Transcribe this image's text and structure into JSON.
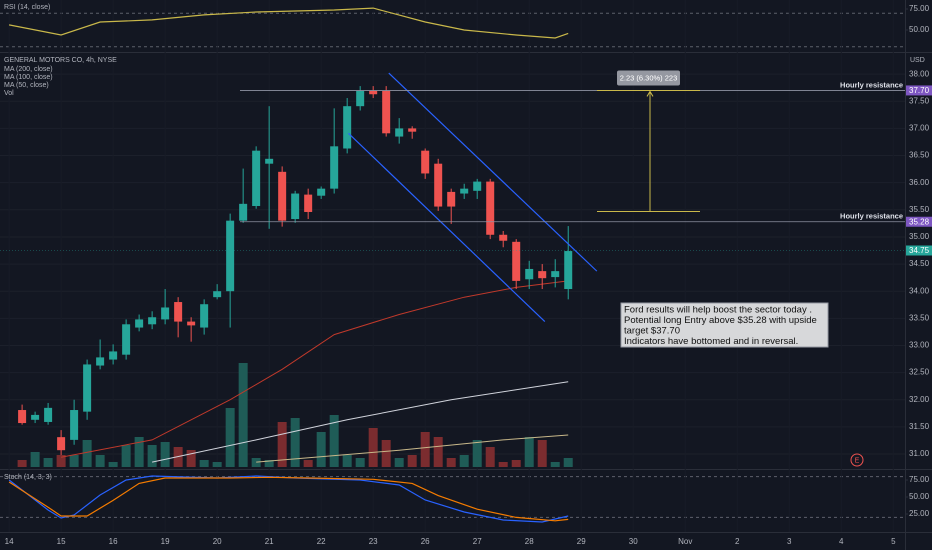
{
  "chart_data": [
    {
      "type": "line",
      "title": "RSI (14, close)",
      "series": [
        {
          "name": null,
          "color": "#c9b84a",
          "x": [
            0,
            4,
            7,
            11,
            15,
            19,
            25,
            28,
            32,
            35,
            39,
            42,
            43
          ],
          "values": [
            56,
            44,
            59.5,
            62,
            68,
            71.4,
            73.8,
            76,
            59.5,
            50,
            44,
            40.5,
            46
          ]
        }
      ],
      "xlim": [
        -0.7,
        68.9
      ],
      "ylim": [
        23.8,
        85.7
      ],
      "yticks": [
        {
          "value": 75,
          "label": "75.00"
        },
        {
          "value": 50,
          "label": "50.00"
        }
      ],
      "bands": [
        70,
        30
      ]
    },
    {
      "type": "candlestick",
      "title": "GENERAL MOTORS CO, 4h, NYSE",
      "currency": "USD",
      "x": [
        1,
        2,
        3,
        4,
        5,
        6,
        7,
        8,
        9,
        10,
        11,
        12,
        13,
        14,
        15,
        16,
        17,
        18,
        19,
        20,
        21,
        22,
        23,
        24,
        25,
        26,
        27,
        28,
        29,
        30,
        31,
        32,
        33,
        34,
        35,
        36,
        37,
        38,
        39,
        40,
        41,
        42,
        43
      ],
      "open": [
        31.81,
        31.63,
        31.59,
        31.31,
        31.26,
        31.78,
        32.63,
        32.74,
        32.83,
        33.33,
        33.39,
        33.48,
        33.8,
        33.44,
        33.33,
        33.89,
        34.0,
        35.3,
        35.57,
        36.35,
        36.2,
        35.33,
        35.78,
        35.76,
        35.89,
        36.63,
        37.41,
        37.69,
        37.69,
        36.85,
        37.0,
        36.59,
        36.35,
        35.83,
        35.8,
        35.85,
        36.02,
        35.04,
        34.91,
        34.22,
        34.37,
        34.26,
        34.04
      ],
      "high": [
        31.91,
        31.78,
        31.94,
        31.44,
        32.0,
        32.74,
        33.11,
        33.02,
        33.48,
        33.57,
        33.63,
        34.04,
        33.89,
        33.52,
        33.85,
        34.13,
        35.43,
        36.26,
        36.67,
        37.41,
        36.3,
        35.85,
        35.89,
        35.93,
        37.37,
        37.56,
        37.78,
        37.78,
        37.78,
        37.19,
        37.04,
        36.63,
        36.44,
        35.89,
        35.98,
        36.07,
        36.07,
        35.11,
        34.96,
        34.56,
        34.5,
        34.59,
        35.2
      ],
      "low": [
        31.54,
        31.57,
        31.54,
        30.98,
        31.17,
        31.63,
        32.56,
        32.65,
        32.74,
        33.26,
        33.3,
        33.39,
        33.15,
        33.07,
        33.2,
        33.85,
        33.33,
        35.26,
        35.52,
        35.15,
        35.19,
        35.26,
        35.33,
        35.7,
        35.8,
        36.54,
        37.33,
        37.56,
        36.85,
        36.72,
        36.81,
        36.07,
        35.48,
        35.24,
        35.7,
        35.7,
        34.96,
        34.81,
        34.04,
        34.04,
        34.04,
        34.07,
        33.85
      ],
      "close": [
        31.57,
        31.72,
        31.85,
        31.07,
        31.81,
        32.65,
        32.78,
        32.89,
        33.39,
        33.48,
        33.52,
        33.7,
        33.44,
        33.37,
        33.76,
        34.0,
        35.3,
        35.61,
        36.59,
        36.44,
        35.3,
        35.8,
        35.46,
        35.89,
        36.67,
        37.41,
        37.69,
        37.63,
        36.91,
        37.0,
        36.94,
        36.17,
        35.56,
        35.56,
        35.89,
        36.02,
        35.04,
        34.93,
        34.19,
        34.41,
        34.24,
        34.37,
        34.74
      ],
      "up_color": "#26a69a",
      "down_color": "#ef5350",
      "volume": {
        "name": "Vol",
        "values": [
          7,
          15,
          9,
          12,
          12,
          27,
          12,
          5,
          22,
          30,
          22,
          25,
          20,
          17,
          7,
          5,
          59,
          104,
          9,
          7,
          45,
          49,
          7,
          35,
          52,
          12,
          9,
          39,
          27,
          9,
          12,
          35,
          30,
          9,
          12,
          27,
          20,
          5,
          7,
          30,
          27,
          5,
          9
        ],
        "up_color": "#1f5c57",
        "down_color": "#7b2c2f"
      },
      "series": [
        {
          "name": "MA (200, close)",
          "color": "#c8b88a",
          "x": [
            19,
            30,
            38,
            43
          ],
          "values": [
            30.85,
            31.07,
            31.26,
            31.35
          ]
        },
        {
          "name": "MA (100, close)",
          "color": "#d1d4dc",
          "x": [
            11,
            19,
            26,
            34,
            43
          ],
          "values": [
            30.85,
            31.26,
            31.63,
            32.0,
            32.33
          ]
        },
        {
          "name": "MA (50, close)",
          "color": "#c0392b",
          "x": [
            4,
            11,
            17,
            21,
            25,
            30,
            35,
            39,
            43
          ],
          "values": [
            30.94,
            31.26,
            32.0,
            32.56,
            33.2,
            33.57,
            33.89,
            34.07,
            34.19
          ]
        }
      ],
      "xlim": [
        -0.7,
        68.9
      ],
      "ylim": [
        30.76,
        38.39
      ],
      "yticks": [
        {
          "value": 38,
          "label": "38.00"
        },
        {
          "value": 37.5,
          "label": "37.50"
        },
        {
          "value": 37,
          "label": "37.00"
        },
        {
          "value": 36.5,
          "label": "36.50"
        },
        {
          "value": 36,
          "label": "36.00"
        },
        {
          "value": 35.5,
          "label": "35.50"
        },
        {
          "value": 35,
          "label": "35.00"
        },
        {
          "value": 34.5,
          "label": "34.50"
        },
        {
          "value": 34,
          "label": "34.00"
        },
        {
          "value": 33.5,
          "label": "33.50"
        },
        {
          "value": 33,
          "label": "33.00"
        },
        {
          "value": 32.5,
          "label": "32.50"
        },
        {
          "value": 32,
          "label": "32.00"
        },
        {
          "value": 31.5,
          "label": "31.50"
        },
        {
          "value": 31,
          "label": "31.00"
        }
      ],
      "grid": true,
      "levels": [
        {
          "value": 37.7,
          "label": "37.70",
          "color": "#7e57c2",
          "text": "Hourly resistance",
          "line": true
        },
        {
          "value": 35.28,
          "label": "35.28",
          "color": "#7e57c2",
          "text": "Hourly resistance",
          "line": true
        },
        {
          "value": 34.75,
          "label": "34.75",
          "color": "#26a69a",
          "line": false
        }
      ],
      "channels": [
        {
          "color": "#2962ff",
          "x": [
            29.2,
            45.2
          ],
          "values": [
            38.02,
            34.37
          ]
        },
        {
          "color": "#2962ff",
          "x": [
            26.1,
            41.2
          ],
          "values": [
            36.91,
            33.44
          ]
        }
      ],
      "measure": {
        "label": "2.23 (6.30%) 223",
        "from": 35.47,
        "to": 37.7,
        "color": "#c9b84a"
      },
      "note": [
        "Ford results will help boost the sector today .",
        "Potential long Entry above $35.28 with upside",
        "target $37.70",
        "Indicators have bottomed and in reversal."
      ]
    },
    {
      "type": "line",
      "title": "Stoch (14, 3, 3)",
      "series": [
        {
          "name": null,
          "color": "#2962ff",
          "x": [
            0,
            3,
            4,
            5,
            7,
            9,
            11,
            16,
            19,
            22,
            27,
            30,
            32,
            35,
            38,
            41,
            43
          ],
          "values": [
            75,
            30.9,
            19.1,
            23.5,
            52.9,
            75,
            80.9,
            77.9,
            80.9,
            77.9,
            75,
            67.6,
            45.6,
            27.9,
            16.2,
            13.2,
            22.1
          ]
        },
        {
          "name": null,
          "color": "#f57c00",
          "x": [
            0,
            3,
            4,
            6,
            8,
            10,
            12,
            17,
            20,
            23,
            28,
            31,
            33,
            36,
            39,
            42,
            43
          ],
          "values": [
            72,
            35,
            22,
            22,
            45,
            70,
            78,
            78,
            79,
            78,
            76,
            70,
            52,
            32,
            20,
            15,
            17
          ]
        }
      ],
      "xlim": [
        -0.7,
        68.9
      ],
      "ylim": [
        -1.5,
        89.7
      ],
      "yticks": [
        {
          "value": 75,
          "label": "75.00"
        },
        {
          "value": 50,
          "label": "50.00"
        },
        {
          "value": 25,
          "label": "25.00"
        }
      ],
      "bands": [
        80,
        20
      ],
      "xticks": [
        {
          "value": 0,
          "label": "14"
        },
        {
          "value": 4,
          "label": "15"
        },
        {
          "value": 8,
          "label": "16"
        },
        {
          "value": 12,
          "label": "19"
        },
        {
          "value": 16,
          "label": "20"
        },
        {
          "value": 20,
          "label": "21"
        },
        {
          "value": 24,
          "label": "22"
        },
        {
          "value": 28,
          "label": "23"
        },
        {
          "value": 32,
          "label": "26"
        },
        {
          "value": 36,
          "label": "27"
        },
        {
          "value": 40,
          "label": "28"
        },
        {
          "value": 44,
          "label": "29"
        },
        {
          "value": 48,
          "label": "30"
        },
        {
          "value": 52,
          "label": "Nov"
        },
        {
          "value": 56,
          "label": "2"
        },
        {
          "value": 60,
          "label": "3"
        },
        {
          "value": 64,
          "label": "4"
        },
        {
          "value": 68,
          "label": "5"
        }
      ]
    }
  ]
}
